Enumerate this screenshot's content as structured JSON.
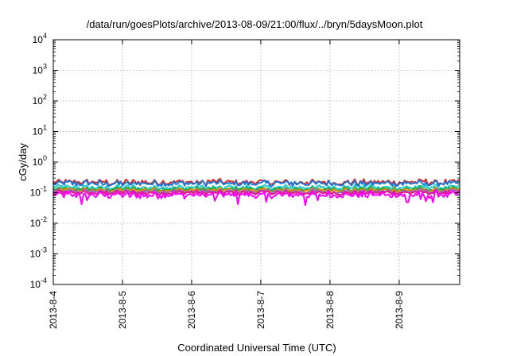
{
  "chart_data": {
    "type": "line",
    "title": "/data/run/goesPlots/archive/2013-08-09/21:00/flux/../bryn/5daysMoon.plot",
    "xlabel": "Coordinated Universal Time (UTC)",
    "ylabel": "cGy/day",
    "xscale": "time",
    "yscale": "log",
    "xlim": [
      "2013-08-04 00:00",
      "2013-08-09 21:00"
    ],
    "ylim": [
      0.0001,
      10000
    ],
    "grid": true,
    "legend": "none",
    "x_ticks": [
      {
        "value": "2013-08-04",
        "label": "2013-8-4"
      },
      {
        "value": "2013-08-05",
        "label": "2013-8-5"
      },
      {
        "value": "2013-08-06",
        "label": "2013-8-6"
      },
      {
        "value": "2013-08-07",
        "label": "2013-8-7"
      },
      {
        "value": "2013-08-08",
        "label": "2013-8-8"
      },
      {
        "value": "2013-08-09",
        "label": "2013-8-9"
      }
    ],
    "y_ticks": [
      {
        "value": 0.0001,
        "base": "10",
        "exp": "-4"
      },
      {
        "value": 0.001,
        "base": "10",
        "exp": "-3"
      },
      {
        "value": 0.01,
        "base": "10",
        "exp": "-2"
      },
      {
        "value": 0.1,
        "base": "10",
        "exp": "-1"
      },
      {
        "value": 1,
        "base": "10",
        "exp": "0"
      },
      {
        "value": 10,
        "base": "10",
        "exp": "1"
      },
      {
        "value": 100,
        "base": "10",
        "exp": "2"
      },
      {
        "value": 1000,
        "base": "10",
        "exp": "3"
      },
      {
        "value": 10000,
        "base": "10",
        "exp": "4"
      }
    ],
    "series": [
      {
        "color": "#d62728",
        "approx_level": 0.22,
        "approx_spread_decades": 0.12
      },
      {
        "color": "#1f77d4",
        "approx_level": 0.2,
        "approx_spread_decades": 0.12
      },
      {
        "color": "#22cccc",
        "approx_level": 0.15,
        "approx_spread_decades": 0.1
      },
      {
        "color": "#2ca02c",
        "approx_level": 0.13,
        "approx_spread_decades": 0.09
      },
      {
        "color": "#e8900c",
        "approx_level": 0.12,
        "approx_spread_decades": 0.09
      },
      {
        "color": "#9467bd",
        "approx_level": 0.11,
        "approx_spread_decades": 0.09
      },
      {
        "color": "#e41a8c",
        "approx_level": 0.1,
        "approx_spread_decades": 0.09
      },
      {
        "color": "#ff00ff",
        "approx_level": 0.085,
        "approx_spread_decades": 0.14
      }
    ]
  }
}
